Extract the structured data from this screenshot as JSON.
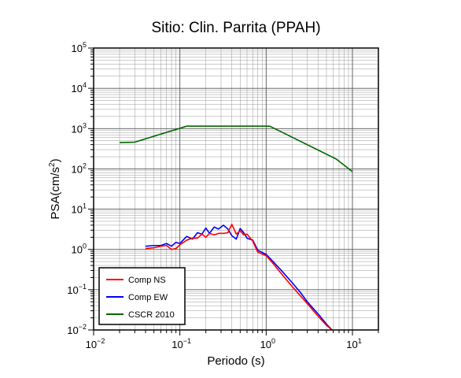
{
  "chart_data": {
    "type": "line",
    "title": "Sitio: Clin. Parrita (PPAH)",
    "xlabel": "Periodo (s)",
    "ylabel_main": "PSA(cm/s",
    "ylabel_sup": "2",
    "ylabel_close": ")",
    "xscale": "log",
    "yscale": "log",
    "xlim": [
      0.01,
      20
    ],
    "ylim": [
      0.01,
      100000
    ],
    "grid": true,
    "legend_position": "bottom-left",
    "x_ticks": [
      {
        "base": "10",
        "exp": "−2",
        "value": 0.01
      },
      {
        "base": "10",
        "exp": "−1",
        "value": 0.1
      },
      {
        "base": "10",
        "exp": "0",
        "value": 1
      },
      {
        "base": "10",
        "exp": "1",
        "value": 10
      }
    ],
    "y_ticks": [
      {
        "base": "10",
        "exp": "−2",
        "value": 0.01
      },
      {
        "base": "10",
        "exp": "−1",
        "value": 0.1
      },
      {
        "base": "10",
        "exp": "0",
        "value": 1
      },
      {
        "base": "10",
        "exp": "1",
        "value": 10
      },
      {
        "base": "10",
        "exp": "2",
        "value": 100
      },
      {
        "base": "10",
        "exp": "3",
        "value": 1000
      },
      {
        "base": "10",
        "exp": "4",
        "value": 10000
      },
      {
        "base": "10",
        "exp": "5",
        "value": 100000
      }
    ],
    "series": [
      {
        "name": "Comp NS",
        "color": "#ff0000",
        "x": [
          0.04,
          0.05,
          0.06,
          0.07,
          0.08,
          0.09,
          0.1,
          0.12,
          0.14,
          0.16,
          0.18,
          0.2,
          0.22,
          0.25,
          0.28,
          0.32,
          0.36,
          0.4,
          0.45,
          0.5,
          0.55,
          0.6,
          0.7,
          0.8,
          1.0,
          1.2,
          1.5,
          2.0,
          2.5,
          3.0,
          4.0,
          5.0,
          5.8
        ],
        "y": [
          1.05,
          1.1,
          1.2,
          1.25,
          1.0,
          1.05,
          1.3,
          1.7,
          1.9,
          1.9,
          2.4,
          2.0,
          2.5,
          2.3,
          2.5,
          2.5,
          2.6,
          4.2,
          2.4,
          2.9,
          2.3,
          2.4,
          1.6,
          0.85,
          0.7,
          0.45,
          0.25,
          0.12,
          0.07,
          0.045,
          0.022,
          0.013,
          0.01
        ]
      },
      {
        "name": "Comp EW",
        "color": "#0000ff",
        "x": [
          0.04,
          0.05,
          0.06,
          0.07,
          0.08,
          0.09,
          0.1,
          0.12,
          0.14,
          0.16,
          0.18,
          0.2,
          0.22,
          0.25,
          0.28,
          0.32,
          0.36,
          0.4,
          0.45,
          0.5,
          0.55,
          0.6,
          0.7,
          0.8,
          1.0,
          1.2,
          1.5,
          2.0,
          2.5,
          3.0,
          4.0,
          5.0,
          5.8
        ],
        "y": [
          1.2,
          1.25,
          1.25,
          1.4,
          1.2,
          1.5,
          1.4,
          2.1,
          1.8,
          2.6,
          2.4,
          3.4,
          2.5,
          3.6,
          3.2,
          4.0,
          3.2,
          2.2,
          1.8,
          3.3,
          2.6,
          1.9,
          1.7,
          0.95,
          0.75,
          0.5,
          0.3,
          0.15,
          0.085,
          0.05,
          0.025,
          0.014,
          0.01
        ]
      },
      {
        "name": "CSCR 2010",
        "color": "#006600",
        "x": [
          0.02,
          0.03,
          0.12,
          1.1,
          6.5,
          10
        ],
        "y": [
          450,
          460,
          1150,
          1150,
          175,
          85
        ]
      }
    ]
  }
}
